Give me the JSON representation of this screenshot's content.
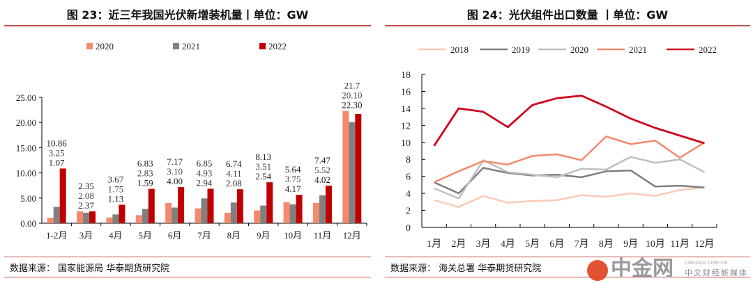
{
  "left": {
    "title": "图 23：近三年我国光伏新增装机量丨单位：GW",
    "source": "数据来源： 国家能源局 华泰期货研究院"
  },
  "right": {
    "title": "图 24：光伏组件出口数量  丨单位：GW",
    "source": "数据来源： 海关总署 华泰期货研究院"
  },
  "watermark": {
    "name": "中金网",
    "sub": "中文财经新媒体",
    "url": "CNGOLD.COM.CN"
  },
  "chart_data": [
    {
      "type": "bar",
      "title": "图 23：近三年我国光伏新增装机量丨单位：GW",
      "categories": [
        "1-2月",
        "3月",
        "4月",
        "5月",
        "6月",
        "7月",
        "8月",
        "9月",
        "10月",
        "11月",
        "12月"
      ],
      "series": [
        {
          "name": "2020",
          "color": "#f4896b",
          "values": [
            1.07,
            2.37,
            1.13,
            1.59,
            4.0,
            2.94,
            2.08,
            2.54,
            4.17,
            4.02,
            22.3
          ],
          "labels": [
            "1.07",
            "2.37",
            "1.13",
            "1.59",
            "4.00",
            "2.94",
            "2.08",
            "2.54",
            "4.17",
            "4.02",
            "22.30"
          ]
        },
        {
          "name": "2021",
          "color": "#808080",
          "values": [
            3.25,
            2.08,
            1.75,
            2.83,
            3.1,
            4.93,
            4.11,
            3.51,
            3.75,
            5.52,
            20.1
          ],
          "labels": [
            "3.25",
            "2.08",
            "1.75",
            "2.83",
            "3.10",
            "4.93",
            "4.11",
            "3.51",
            "3.75",
            "5.52",
            "20.10"
          ]
        },
        {
          "name": "2022",
          "color": "#c00000",
          "values": [
            10.86,
            2.35,
            3.67,
            6.83,
            7.17,
            6.85,
            6.74,
            8.13,
            5.64,
            7.47,
            21.7
          ],
          "labels": [
            "10.86",
            "2.35",
            "3.67",
            "6.83",
            "7.17",
            "6.85",
            "6.74",
            "8.13",
            "5.64",
            "7.47",
            "21.7"
          ]
        }
      ],
      "ylim": [
        0,
        25
      ],
      "yticks": [
        "0.00",
        "5.00",
        "10.00",
        "15.00",
        "20.00",
        "25.00"
      ],
      "legend": "top",
      "grid": false
    },
    {
      "type": "line",
      "title": "图 24：光伏组件出口数量  丨单位：GW",
      "categories": [
        "1月",
        "2月",
        "3月",
        "4月",
        "5月",
        "6月",
        "7月",
        "8月",
        "9月",
        "10月",
        "11月",
        "12月"
      ],
      "series": [
        {
          "name": "2018",
          "color": "#fbc9b6",
          "values": [
            3.2,
            2.4,
            3.7,
            2.9,
            3.1,
            3.2,
            3.8,
            3.6,
            4.0,
            3.7,
            4.4,
            4.7
          ]
        },
        {
          "name": "2019",
          "color": "#7f7f7f",
          "values": [
            5.3,
            4.0,
            7.0,
            6.4,
            6.1,
            6.2,
            5.9,
            6.6,
            6.7,
            4.8,
            4.9,
            4.7
          ]
        },
        {
          "name": "2020",
          "color": "#bfbfbf",
          "values": [
            4.6,
            3.4,
            7.9,
            6.5,
            6.2,
            5.9,
            6.9,
            6.8,
            8.3,
            7.6,
            8.0,
            6.5
          ]
        },
        {
          "name": "2021",
          "color": "#f4896b",
          "values": [
            5.3,
            6.6,
            7.8,
            7.4,
            8.4,
            8.6,
            7.9,
            10.7,
            9.8,
            10.2,
            8.2,
            10.0
          ]
        },
        {
          "name": "2022",
          "color": "#d0021b",
          "values": [
            9.6,
            14.0,
            13.6,
            11.8,
            14.4,
            15.2,
            15.5,
            14.2,
            12.8,
            11.7,
            10.8,
            9.9
          ]
        }
      ],
      "ylim": [
        0,
        18
      ],
      "yticks": [
        "0",
        "2",
        "4",
        "6",
        "8",
        "10",
        "12",
        "14",
        "16",
        "18"
      ],
      "legend": "top",
      "grid": false
    }
  ]
}
